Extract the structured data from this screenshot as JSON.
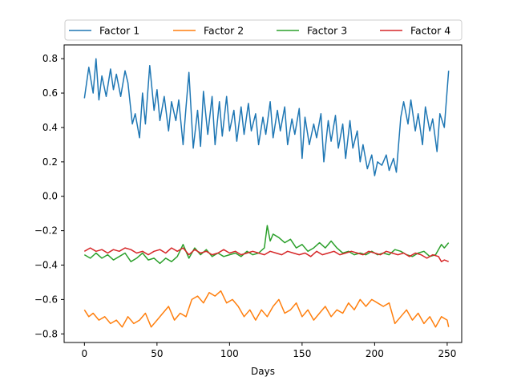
{
  "chart_data": {
    "type": "line",
    "title": "",
    "xlabel": "Days",
    "ylabel": "",
    "xlim": [
      -14,
      260
    ],
    "ylim": [
      -0.85,
      0.88
    ],
    "xticks": [
      0,
      50,
      100,
      150,
      200,
      250
    ],
    "yticks": [
      -0.8,
      -0.6,
      -0.4,
      -0.2,
      0.0,
      0.2,
      0.4,
      0.6,
      0.8
    ],
    "ytick_labels": [
      "−0.8",
      "−0.6",
      "−0.4",
      "−0.2",
      "0.0",
      "0.2",
      "0.4",
      "0.6",
      "0.8"
    ],
    "grid": false,
    "legend": {
      "placement": "top (above plot)",
      "columns": 4
    },
    "series": [
      {
        "name": "Factor 1",
        "color": "#1f77b4",
        "x": [
          0,
          3,
          6,
          8,
          10,
          12,
          15,
          18,
          20,
          22,
          25,
          28,
          30,
          33,
          35,
          38,
          40,
          42,
          45,
          48,
          50,
          52,
          55,
          58,
          60,
          63,
          65,
          68,
          70,
          72,
          75,
          78,
          80,
          82,
          85,
          88,
          90,
          93,
          95,
          98,
          100,
          103,
          105,
          108,
          110,
          113,
          115,
          118,
          120,
          123,
          125,
          128,
          130,
          133,
          135,
          138,
          140,
          143,
          145,
          148,
          150,
          152,
          155,
          158,
          160,
          163,
          165,
          168,
          170,
          173,
          175,
          178,
          180,
          183,
          185,
          188,
          190,
          192,
          195,
          198,
          200,
          202,
          205,
          208,
          210,
          213,
          215,
          218,
          220,
          223,
          225,
          228,
          230,
          233,
          235,
          238,
          240,
          243,
          245,
          248,
          251
        ],
        "y": [
          0.57,
          0.75,
          0.6,
          0.8,
          0.56,
          0.7,
          0.58,
          0.74,
          0.62,
          0.71,
          0.58,
          0.73,
          0.66,
          0.42,
          0.48,
          0.34,
          0.6,
          0.42,
          0.76,
          0.5,
          0.62,
          0.44,
          0.58,
          0.38,
          0.55,
          0.44,
          0.56,
          0.3,
          0.52,
          0.72,
          0.28,
          0.5,
          0.29,
          0.61,
          0.36,
          0.58,
          0.3,
          0.55,
          0.35,
          0.58,
          0.38,
          0.5,
          0.32,
          0.52,
          0.36,
          0.54,
          0.38,
          0.48,
          0.3,
          0.46,
          0.36,
          0.55,
          0.34,
          0.5,
          0.38,
          0.52,
          0.3,
          0.45,
          0.36,
          0.51,
          0.22,
          0.46,
          0.3,
          0.42,
          0.34,
          0.48,
          0.2,
          0.44,
          0.32,
          0.47,
          0.28,
          0.42,
          0.22,
          0.44,
          0.28,
          0.38,
          0.2,
          0.3,
          0.16,
          0.24,
          0.12,
          0.2,
          0.18,
          0.24,
          0.15,
          0.22,
          0.14,
          0.46,
          0.55,
          0.42,
          0.56,
          0.38,
          0.48,
          0.3,
          0.52,
          0.38,
          0.45,
          0.26,
          0.48,
          0.4,
          0.73
        ]
      },
      {
        "name": "Factor 2",
        "color": "#ff7f0e",
        "x": [
          0,
          3,
          6,
          10,
          14,
          18,
          22,
          26,
          30,
          34,
          38,
          42,
          46,
          50,
          54,
          58,
          62,
          66,
          70,
          74,
          78,
          82,
          86,
          90,
          94,
          98,
          102,
          106,
          110,
          114,
          118,
          122,
          126,
          130,
          134,
          138,
          142,
          146,
          150,
          154,
          158,
          162,
          166,
          170,
          174,
          178,
          182,
          186,
          190,
          194,
          198,
          202,
          206,
          210,
          214,
          218,
          222,
          226,
          230,
          234,
          238,
          242,
          246,
          250,
          251
        ],
        "y": [
          -0.66,
          -0.7,
          -0.68,
          -0.72,
          -0.7,
          -0.74,
          -0.72,
          -0.76,
          -0.7,
          -0.74,
          -0.72,
          -0.68,
          -0.76,
          -0.72,
          -0.68,
          -0.64,
          -0.72,
          -0.68,
          -0.7,
          -0.6,
          -0.58,
          -0.62,
          -0.56,
          -0.58,
          -0.55,
          -0.62,
          -0.6,
          -0.64,
          -0.7,
          -0.66,
          -0.72,
          -0.66,
          -0.7,
          -0.64,
          -0.6,
          -0.68,
          -0.66,
          -0.62,
          -0.7,
          -0.66,
          -0.72,
          -0.68,
          -0.64,
          -0.7,
          -0.66,
          -0.68,
          -0.62,
          -0.66,
          -0.6,
          -0.64,
          -0.6,
          -0.62,
          -0.64,
          -0.62,
          -0.74,
          -0.7,
          -0.66,
          -0.72,
          -0.68,
          -0.74,
          -0.7,
          -0.76,
          -0.7,
          -0.72,
          -0.76
        ]
      },
      {
        "name": "Factor 3",
        "color": "#2ca02c",
        "x": [
          0,
          4,
          8,
          12,
          16,
          20,
          24,
          28,
          32,
          36,
          40,
          44,
          48,
          52,
          56,
          60,
          64,
          68,
          72,
          76,
          80,
          84,
          88,
          92,
          96,
          100,
          104,
          108,
          112,
          116,
          120,
          124,
          126,
          128,
          130,
          134,
          138,
          142,
          146,
          150,
          154,
          158,
          162,
          166,
          170,
          174,
          178,
          182,
          186,
          190,
          194,
          198,
          202,
          206,
          210,
          214,
          218,
          222,
          226,
          230,
          234,
          238,
          242,
          246,
          248,
          251
        ],
        "y": [
          -0.34,
          -0.36,
          -0.33,
          -0.36,
          -0.34,
          -0.37,
          -0.35,
          -0.33,
          -0.38,
          -0.36,
          -0.33,
          -0.37,
          -0.36,
          -0.39,
          -0.36,
          -0.38,
          -0.35,
          -0.28,
          -0.36,
          -0.3,
          -0.34,
          -0.31,
          -0.35,
          -0.33,
          -0.35,
          -0.34,
          -0.33,
          -0.35,
          -0.32,
          -0.34,
          -0.33,
          -0.3,
          -0.17,
          -0.26,
          -0.22,
          -0.24,
          -0.27,
          -0.25,
          -0.3,
          -0.28,
          -0.32,
          -0.3,
          -0.27,
          -0.3,
          -0.26,
          -0.3,
          -0.33,
          -0.32,
          -0.34,
          -0.33,
          -0.34,
          -0.32,
          -0.34,
          -0.33,
          -0.34,
          -0.31,
          -0.32,
          -0.34,
          -0.35,
          -0.33,
          -0.32,
          -0.35,
          -0.34,
          -0.28,
          -0.3,
          -0.27
        ]
      },
      {
        "name": "Factor 4",
        "color": "#d62728",
        "x": [
          0,
          4,
          8,
          12,
          16,
          20,
          24,
          28,
          32,
          36,
          40,
          44,
          48,
          52,
          56,
          60,
          64,
          68,
          72,
          76,
          80,
          84,
          88,
          92,
          96,
          100,
          104,
          108,
          112,
          116,
          120,
          124,
          128,
          132,
          136,
          140,
          144,
          148,
          152,
          156,
          160,
          164,
          168,
          172,
          176,
          180,
          184,
          188,
          192,
          196,
          200,
          204,
          208,
          212,
          216,
          220,
          224,
          228,
          232,
          236,
          240,
          244,
          246,
          248,
          251
        ],
        "y": [
          -0.32,
          -0.3,
          -0.32,
          -0.31,
          -0.33,
          -0.31,
          -0.32,
          -0.3,
          -0.31,
          -0.33,
          -0.32,
          -0.34,
          -0.32,
          -0.31,
          -0.33,
          -0.3,
          -0.32,
          -0.3,
          -0.34,
          -0.31,
          -0.33,
          -0.32,
          -0.34,
          -0.33,
          -0.31,
          -0.33,
          -0.32,
          -0.34,
          -0.33,
          -0.32,
          -0.33,
          -0.34,
          -0.32,
          -0.33,
          -0.34,
          -0.32,
          -0.33,
          -0.34,
          -0.33,
          -0.35,
          -0.32,
          -0.34,
          -0.33,
          -0.32,
          -0.34,
          -0.33,
          -0.32,
          -0.33,
          -0.34,
          -0.32,
          -0.33,
          -0.34,
          -0.32,
          -0.33,
          -0.34,
          -0.33,
          -0.35,
          -0.33,
          -0.34,
          -0.36,
          -0.34,
          -0.35,
          -0.38,
          -0.37,
          -0.38
        ]
      }
    ]
  }
}
